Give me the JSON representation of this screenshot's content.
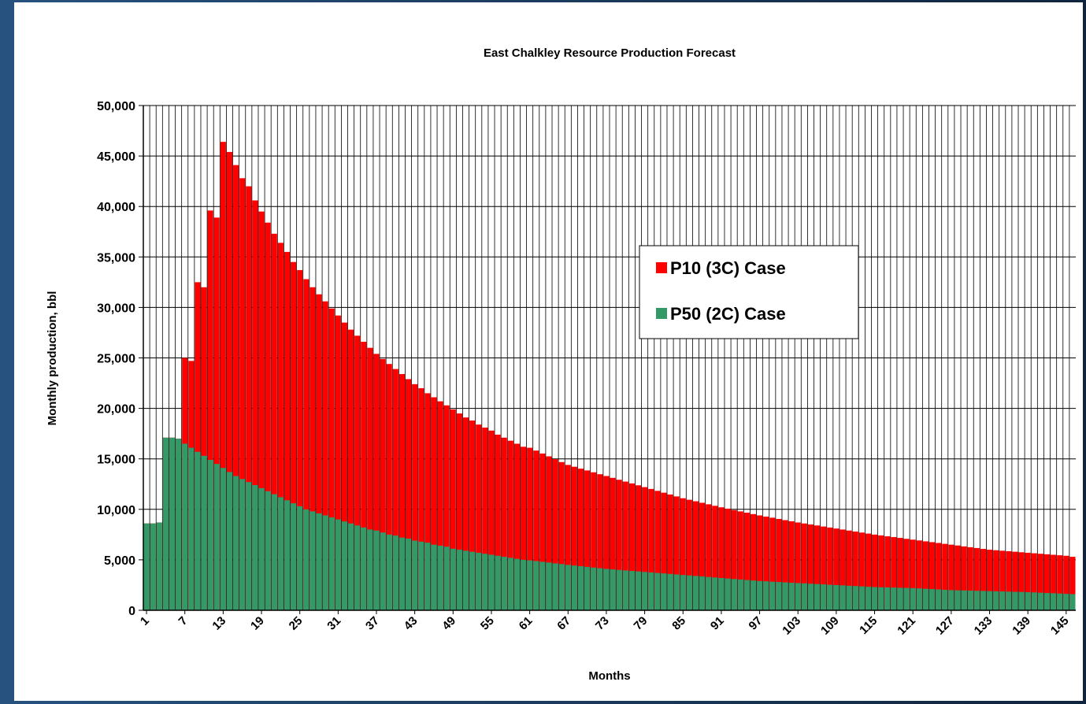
{
  "chart_data": {
    "type": "bar",
    "title": "East Chalkley Resource Production Forecast",
    "x_label": "Months",
    "y_label": "Monthly production, bbl",
    "categories": [
      1,
      null,
      null,
      null,
      null,
      null,
      7,
      null,
      null,
      null,
      null,
      null,
      13,
      null,
      null,
      null,
      null,
      null,
      19,
      null,
      null,
      null,
      null,
      null,
      25,
      null,
      null,
      null,
      null,
      null,
      31,
      null,
      null,
      null,
      null,
      null,
      37,
      null,
      null,
      null,
      null,
      null,
      43,
      null,
      null,
      null,
      null,
      null,
      49,
      null,
      null,
      null,
      null,
      null,
      55,
      null,
      null,
      null,
      null,
      null,
      61,
      null,
      null,
      null,
      null,
      null,
      67,
      null,
      null,
      null,
      null,
      null,
      73,
      null,
      null,
      null,
      null,
      null,
      79,
      null,
      null,
      null,
      null,
      null,
      85,
      null,
      null,
      null,
      null,
      null,
      91,
      null,
      null,
      null,
      null,
      null,
      97,
      null,
      null,
      null,
      null,
      null,
      103,
      null,
      null,
      null,
      null,
      null,
      109,
      null,
      null,
      null,
      null,
      null,
      115,
      null,
      null,
      null,
      null,
      null,
      121,
      null,
      null,
      null,
      null,
      null,
      127,
      null,
      null,
      null,
      null,
      null,
      133,
      null,
      null,
      null,
      null,
      null,
      139,
      null,
      null,
      null,
      null,
      null,
      145,
      null
    ],
    "series": [
      {
        "name": "P10 (3C) Case",
        "color": "#ff0000",
        "values": [
          8600,
          8600,
          8700,
          17100,
          17100,
          17000,
          25000,
          24700,
          32500,
          32000,
          39600,
          38900,
          46400,
          45400,
          44100,
          42800,
          42000,
          40600,
          39500,
          38400,
          37300,
          36400,
          35500,
          34500,
          33700,
          32800,
          32000,
          31300,
          30600,
          29900,
          29200,
          28500,
          27800,
          27200,
          26600,
          26000,
          25400,
          24900,
          24400,
          23900,
          23400,
          22900,
          22400,
          22000,
          21500,
          21100,
          20700,
          20300,
          19900,
          19500,
          19100,
          18800,
          18400,
          18100,
          17800,
          17400,
          17100,
          16800,
          16500,
          16200,
          16100,
          15820,
          15530,
          15250,
          14970,
          14680,
          14400,
          14220,
          14030,
          13850,
          13670,
          13480,
          13300,
          13120,
          12930,
          12750,
          12570,
          12380,
          12200,
          12020,
          11830,
          11650,
          11470,
          11280,
          11100,
          10950,
          10800,
          10650,
          10500,
          10350,
          10200,
          10070,
          9930,
          9800,
          9670,
          9530,
          9400,
          9280,
          9170,
          9050,
          8930,
          8820,
          8700,
          8600,
          8500,
          8400,
          8300,
          8200,
          8100,
          8000,
          7900,
          7800,
          7700,
          7600,
          7500,
          7420,
          7330,
          7250,
          7170,
          7080,
          7000,
          6920,
          6830,
          6750,
          6670,
          6580,
          6500,
          6420,
          6330,
          6250,
          6170,
          6080,
          6000,
          5950,
          5900,
          5850,
          5800,
          5750,
          5700,
          5650,
          5600,
          5550,
          5500,
          5450,
          5400,
          5300
        ]
      },
      {
        "name": "P50 (2C) Case",
        "color": "#339966",
        "values": [
          8600,
          8600,
          8700,
          17100,
          17100,
          17000,
          16500,
          16100,
          15700,
          15300,
          14900,
          14500,
          14100,
          13700,
          13300,
          13000,
          12700,
          12400,
          12100,
          11800,
          11500,
          11200,
          10900,
          10600,
          10300,
          10000,
          9800,
          9600,
          9400,
          9200,
          9000,
          8800,
          8600,
          8400,
          8200,
          8000,
          7900,
          7700,
          7500,
          7400,
          7200,
          7100,
          6900,
          6800,
          6700,
          6500,
          6400,
          6300,
          6100,
          6000,
          5900,
          5800,
          5700,
          5600,
          5500,
          5400,
          5300,
          5200,
          5100,
          5000,
          4950,
          4880,
          4800,
          4730,
          4650,
          4580,
          4500,
          4430,
          4370,
          4300,
          4230,
          4170,
          4100,
          4050,
          4000,
          3950,
          3900,
          3850,
          3800,
          3750,
          3700,
          3650,
          3600,
          3550,
          3500,
          3450,
          3400,
          3350,
          3300,
          3250,
          3200,
          3150,
          3100,
          3050,
          3000,
          2950,
          2900,
          2870,
          2830,
          2800,
          2770,
          2730,
          2700,
          2670,
          2630,
          2600,
          2570,
          2530,
          2500,
          2470,
          2430,
          2400,
          2370,
          2330,
          2300,
          2280,
          2270,
          2250,
          2230,
          2220,
          2200,
          2170,
          2130,
          2100,
          2070,
          2030,
          2000,
          1980,
          1970,
          1950,
          1930,
          1920,
          1900,
          1880,
          1870,
          1850,
          1830,
          1820,
          1800,
          1770,
          1740,
          1710,
          1690,
          1660,
          1630,
          1600
        ]
      }
    ],
    "ylim": [
      0,
      50000
    ],
    "yticks": [
      {
        "value": 0,
        "label": "0"
      },
      {
        "value": 5000,
        "label": "5,000"
      },
      {
        "value": 10000,
        "label": "10,000"
      },
      {
        "value": 15000,
        "label": "15,000"
      },
      {
        "value": 20000,
        "label": "20,000"
      },
      {
        "value": 25000,
        "label": "25,000"
      },
      {
        "value": 30000,
        "label": "30,000"
      },
      {
        "value": 35000,
        "label": "35,000"
      },
      {
        "value": 40000,
        "label": "40,000"
      },
      {
        "value": 45000,
        "label": "45,000"
      },
      {
        "value": 50000,
        "label": "50,000"
      }
    ],
    "grid": true,
    "legend": "center-right",
    "overlap": true
  }
}
